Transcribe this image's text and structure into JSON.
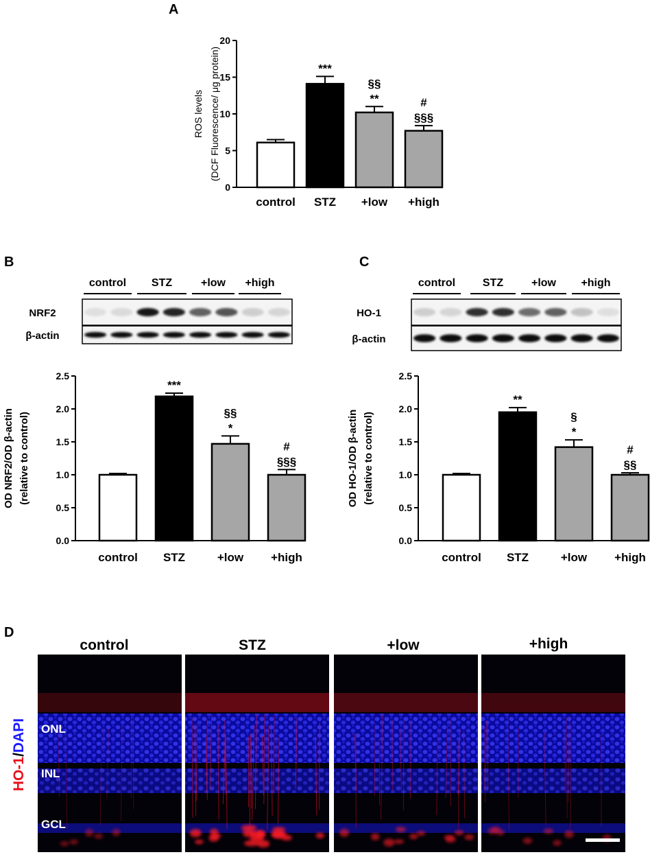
{
  "panels": {
    "a": {
      "letter": "A"
    },
    "b": {
      "letter": "B"
    },
    "c": {
      "letter": "C"
    },
    "d": {
      "letter": "D"
    }
  },
  "chart_data": [
    {
      "id": "A",
      "type": "bar",
      "ylabel_lines": [
        "ROS levels",
        "(DCF Fluorescence/ μg protein)"
      ],
      "categories": [
        "control",
        "STZ",
        "+low",
        "+high"
      ],
      "values": [
        6.1,
        14.1,
        10.2,
        7.7
      ],
      "errors": [
        0.4,
        1.0,
        0.8,
        0.7
      ],
      "ylim": [
        0,
        20
      ],
      "yticks": [
        0,
        5,
        10,
        15,
        20
      ],
      "ytick_labels": [
        "0",
        "5",
        "10",
        "15",
        "20"
      ],
      "fills": [
        "#ffffff",
        "#000000",
        "#a6a6a6",
        "#a6a6a6"
      ],
      "annotations": [
        [],
        [
          "***"
        ],
        [
          "**",
          "§§"
        ],
        [
          "§§§",
          "#"
        ]
      ]
    },
    {
      "id": "B",
      "type": "bar",
      "ylabel_lines": [
        "OD NRF2/OD β-actin",
        "(relative to control)"
      ],
      "categories": [
        "control",
        "STZ",
        "+low",
        "+high"
      ],
      "values": [
        1.0,
        2.19,
        1.47,
        1.0
      ],
      "errors": [
        0.02,
        0.05,
        0.12,
        0.08
      ],
      "ylim": [
        0,
        2.5
      ],
      "yticks": [
        0,
        0.5,
        1.0,
        1.5,
        2.0,
        2.5
      ],
      "ytick_labels": [
        "0.0",
        "0.5",
        "1.0",
        "1.5",
        "2.0",
        "2.5"
      ],
      "fills": [
        "#ffffff",
        "#000000",
        "#a6a6a6",
        "#a6a6a6"
      ],
      "annotations": [
        [],
        [
          "***"
        ],
        [
          "*",
          "§§"
        ],
        [
          "§§§",
          "#"
        ]
      ]
    },
    {
      "id": "C",
      "type": "bar",
      "ylabel_lines": [
        "OD HO-1/OD β-actin",
        "(relative to control)"
      ],
      "categories": [
        "control",
        "STZ",
        "+low",
        "+high"
      ],
      "values": [
        1.0,
        1.95,
        1.42,
        1.0
      ],
      "errors": [
        0.02,
        0.07,
        0.11,
        0.03
      ],
      "ylim": [
        0,
        2.5
      ],
      "yticks": [
        0,
        0.5,
        1.0,
        1.5,
        2.0,
        2.5
      ],
      "ytick_labels": [
        "0.0",
        "0.5",
        "1.0",
        "1.5",
        "2.0",
        "2.5"
      ],
      "fills": [
        "#ffffff",
        "#000000",
        "#a6a6a6",
        "#a6a6a6"
      ],
      "annotations": [
        [],
        [
          "**"
        ],
        [
          "*",
          "§"
        ],
        [
          "§§",
          "#"
        ]
      ]
    }
  ],
  "blots": {
    "b": {
      "groups": [
        "control",
        "STZ",
        "+low",
        "+high"
      ],
      "rows": [
        {
          "label": "NRF2",
          "intensities": [
            0.08,
            0.1,
            0.9,
            0.85,
            0.6,
            0.65,
            0.15,
            0.12
          ]
        },
        {
          "label": "β-actin",
          "intensities": [
            0.95,
            0.95,
            0.95,
            0.95,
            0.95,
            0.95,
            0.95,
            0.95
          ]
        }
      ]
    },
    "c": {
      "groups": [
        "control",
        "STZ",
        "+low",
        "+high"
      ],
      "rows": [
        {
          "label": "HO-1",
          "intensities": [
            0.15,
            0.12,
            0.8,
            0.8,
            0.55,
            0.6,
            0.2,
            0.08
          ]
        },
        {
          "label": "β-actin",
          "intensities": [
            0.95,
            0.95,
            0.95,
            0.95,
            0.95,
            0.95,
            0.95,
            0.95
          ]
        }
      ]
    }
  },
  "micrographs": {
    "stain_label": {
      "red": "HO-1",
      "sep": "/",
      "blue": "DAPI"
    },
    "stain_colors": {
      "red": "#e8101a",
      "blue": "#1a1aff"
    },
    "conditions": [
      "control",
      "STZ",
      "+low",
      "+high"
    ],
    "red_level": [
      0.15,
      0.9,
      0.5,
      0.3
    ],
    "layers": [
      "ONL",
      "INL",
      "GCL"
    ]
  }
}
